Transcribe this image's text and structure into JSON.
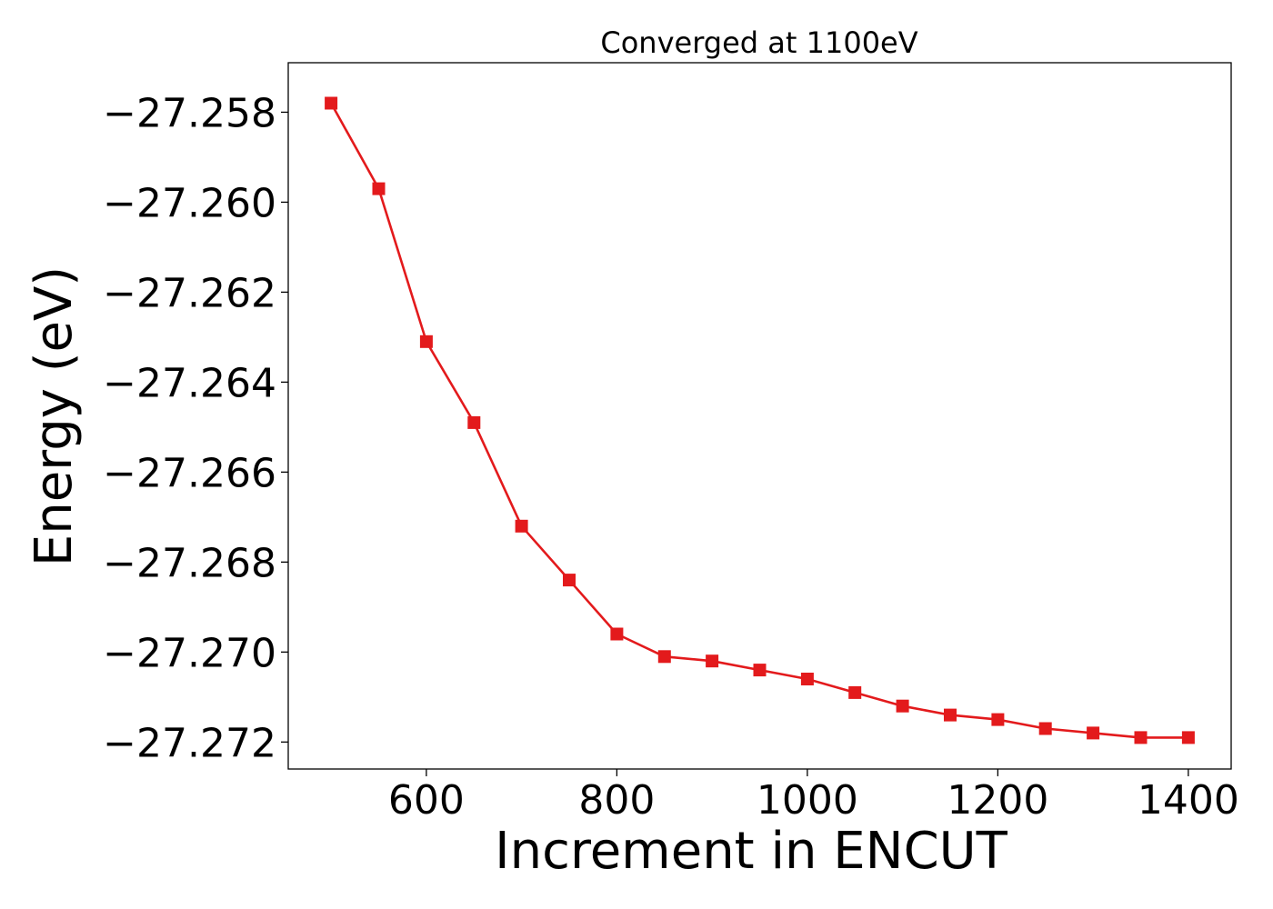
{
  "chart_data": {
    "type": "line",
    "title": "Converged at 1100eV",
    "xlabel": "Increment in ENCUT",
    "ylabel": "Energy (eV)",
    "xlim": [
      455,
      1445
    ],
    "ylim": [
      -27.2726,
      -27.2569
    ],
    "xticks": [
      600,
      800,
      1000,
      1200,
      1400
    ],
    "xtick_labels": [
      "600",
      "800",
      "1000",
      "1200",
      "1400"
    ],
    "yticks": [
      -27.258,
      -27.26,
      -27.262,
      -27.264,
      -27.266,
      -27.268,
      -27.27,
      -27.272
    ],
    "ytick_labels": [
      "−27.258",
      "−27.260",
      "−27.262",
      "−27.264",
      "−27.266",
      "−27.268",
      "−27.270",
      "−27.272"
    ],
    "grid": false,
    "legend": false,
    "marker": "square",
    "color": "#e31a1c",
    "x": [
      500,
      550,
      600,
      650,
      700,
      750,
      800,
      850,
      900,
      950,
      1000,
      1050,
      1100,
      1150,
      1200,
      1250,
      1300,
      1350,
      1400
    ],
    "y": [
      -27.2578,
      -27.2597,
      -27.2631,
      -27.2649,
      -27.2672,
      -27.2684,
      -27.2696,
      -27.2701,
      -27.2702,
      -27.2704,
      -27.2706,
      -27.2709,
      -27.2712,
      -27.2714,
      -27.2715,
      -27.2717,
      -27.2718,
      -27.2719,
      -27.2719
    ]
  }
}
